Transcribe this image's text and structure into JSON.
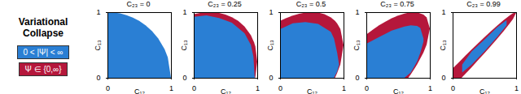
{
  "title": "Variational Collapse",
  "legend": "left",
  "chart_data": [
    {
      "type": "area",
      "title": "C₂₃ = 0",
      "x_label": "C₁₂",
      "y_label": "C₁₃",
      "xlim": [
        0,
        1
      ],
      "ylim": [
        0,
        1
      ],
      "xticks": [
        0,
        1
      ],
      "yticks": [
        0,
        1
      ],
      "series": [
        {
          "name": "0 < |Ψ| < ∞",
          "color": "#2a7fd4",
          "x": [
            0,
            0.1,
            0.2,
            0.3,
            0.4,
            0.5,
            0.6,
            0.7,
            0.8,
            0.9,
            0.95,
            1
          ],
          "low": [
            0,
            0,
            0,
            0,
            0,
            0,
            0,
            0,
            0,
            0,
            0,
            0
          ],
          "high": [
            1,
            0.995,
            0.98,
            0.954,
            0.917,
            0.866,
            0.8,
            0.714,
            0.6,
            0.436,
            0.312,
            0
          ]
        }
      ]
    },
    {
      "type": "area",
      "title": "C₂₃ = 0.25",
      "x_label": "C₁₂",
      "y_label": "C₁₃",
      "xlim": [
        0,
        1
      ],
      "ylim": [
        0,
        1
      ],
      "xticks": [
        0,
        1
      ],
      "yticks": [
        0,
        1
      ],
      "series": [
        {
          "name": "Ψ ∈ {0,∞}",
          "color": "#b5173b",
          "x": [
            0,
            0.1,
            0.2,
            0.3,
            0.4,
            0.5,
            0.6,
            0.7,
            0.8,
            0.9,
            0.95,
            0.97,
            1
          ],
          "low": [
            0,
            0,
            0,
            0,
            0,
            0,
            0,
            0,
            0,
            0,
            0,
            0.007,
            0.25
          ],
          "high": [
            0.968,
            0.988,
            0.999,
            0.998,
            0.988,
            0.963,
            0.924,
            0.866,
            0.781,
            0.647,
            0.54,
            0.478,
            0.25
          ]
        },
        {
          "name": "0 < |Ψ| < ∞",
          "color": "#2a7fd4",
          "x": [
            0,
            0.2,
            0.4,
            0.6,
            0.8,
            0.9,
            0.94,
            0.96
          ],
          "low": [
            0,
            0,
            0,
            0,
            0,
            0,
            0,
            0
          ],
          "high": [
            0.93,
            0.95,
            0.91,
            0.84,
            0.68,
            0.5,
            0.32,
            0
          ]
        }
      ]
    },
    {
      "type": "area",
      "title": "C₂₃ = 0.5",
      "x_label": "C₁₂",
      "y_label": "C₁₃",
      "xlim": [
        0,
        1
      ],
      "ylim": [
        0,
        1
      ],
      "xticks": [
        0,
        1
      ],
      "yticks": [
        0,
        1
      ],
      "series": [
        {
          "name": "Ψ ∈ {0,∞}",
          "color": "#b5173b",
          "x": [
            0,
            0.1,
            0.2,
            0.3,
            0.4,
            0.5,
            0.6,
            0.7,
            0.8,
            0.866,
            0.9,
            0.95,
            1
          ],
          "low": [
            0,
            0,
            0,
            0,
            0,
            0,
            0,
            0,
            0,
            0,
            0.073,
            0.205,
            0.5
          ],
          "high": [
            0.866,
            0.912,
            0.949,
            0.976,
            0.994,
            1.0,
            0.993,
            0.968,
            0.92,
            0.866,
            0.827,
            0.745,
            0.5
          ]
        },
        {
          "name": "0 < |Ψ| < ∞",
          "color": "#2a7fd4",
          "x": [
            0,
            0.2,
            0.4,
            0.6,
            0.8,
            0.85,
            0.9,
            0.93
          ],
          "low": [
            0,
            0,
            0,
            0,
            0,
            0,
            0.1,
            0.2
          ],
          "high": [
            0.74,
            0.83,
            0.85,
            0.82,
            0.7,
            0.6,
            0.38,
            0.2
          ]
        }
      ]
    },
    {
      "type": "area",
      "title": "C₂₃ = 0.75",
      "x_label": "C₁₂",
      "y_label": "C₁₃",
      "xlim": [
        0,
        1
      ],
      "ylim": [
        0,
        1
      ],
      "xticks": [
        0,
        1
      ],
      "yticks": [
        0,
        1
      ],
      "series": [
        {
          "name": "Ψ ∈ {0,∞}",
          "color": "#b5173b",
          "x": [
            0,
            0.1,
            0.2,
            0.3,
            0.4,
            0.5,
            0.6,
            0.661,
            0.7,
            0.75,
            0.8,
            0.9,
            0.95,
            1
          ],
          "low": [
            0,
            0,
            0,
            0,
            0,
            0,
            0,
            0,
            0.053,
            0.127,
            0.203,
            0.387,
            0.506,
            0.75
          ],
          "high": [
            0.661,
            0.733,
            0.798,
            0.856,
            0.906,
            0.948,
            0.979,
            0.992,
            0.997,
            1.0,
            0.997,
            0.963,
            0.919,
            0.75
          ]
        },
        {
          "name": "0 < |Ψ| < ∞",
          "color": "#2a7fd4",
          "x": [
            0,
            0.2,
            0.4,
            0.6,
            0.7,
            0.8,
            0.85,
            0.9
          ],
          "low": [
            0,
            0,
            0,
            0,
            0.08,
            0.25,
            0.38,
            0.55
          ],
          "high": [
            0.52,
            0.62,
            0.72,
            0.78,
            0.8,
            0.79,
            0.76,
            0.6
          ]
        }
      ]
    },
    {
      "type": "area",
      "title": "C₂₃ = 0.99",
      "x_label": "C₁₂",
      "y_label": "C₁₃",
      "xlim": [
        0,
        1
      ],
      "ylim": [
        0,
        1
      ],
      "xticks": [
        0,
        1
      ],
      "yticks": [
        0,
        1
      ],
      "series": [
        {
          "name": "Ψ ∈ {0,∞}",
          "color": "#b5173b",
          "x": [
            0,
            0.1,
            0.141,
            0.2,
            0.3,
            0.4,
            0.5,
            0.6,
            0.7,
            0.8,
            0.9,
            0.95,
            1
          ],
          "low": [
            0,
            0,
            0,
            0.06,
            0.162,
            0.267,
            0.373,
            0.481,
            0.592,
            0.707,
            0.83,
            0.896,
            0.99
          ],
          "high": [
            0.141,
            0.239,
            0.279,
            0.336,
            0.432,
            0.525,
            0.617,
            0.707,
            0.794,
            0.877,
            0.952,
            0.984,
            0.99
          ]
        },
        {
          "name": "0 < |Ψ| < ∞",
          "color": "#2a7fd4",
          "x": [
            0.15,
            0.3,
            0.5,
            0.7,
            0.85
          ],
          "low": [
            0.08,
            0.2,
            0.4,
            0.62,
            0.8
          ],
          "high": [
            0.2,
            0.4,
            0.58,
            0.77,
            0.88
          ]
        }
      ]
    }
  ]
}
